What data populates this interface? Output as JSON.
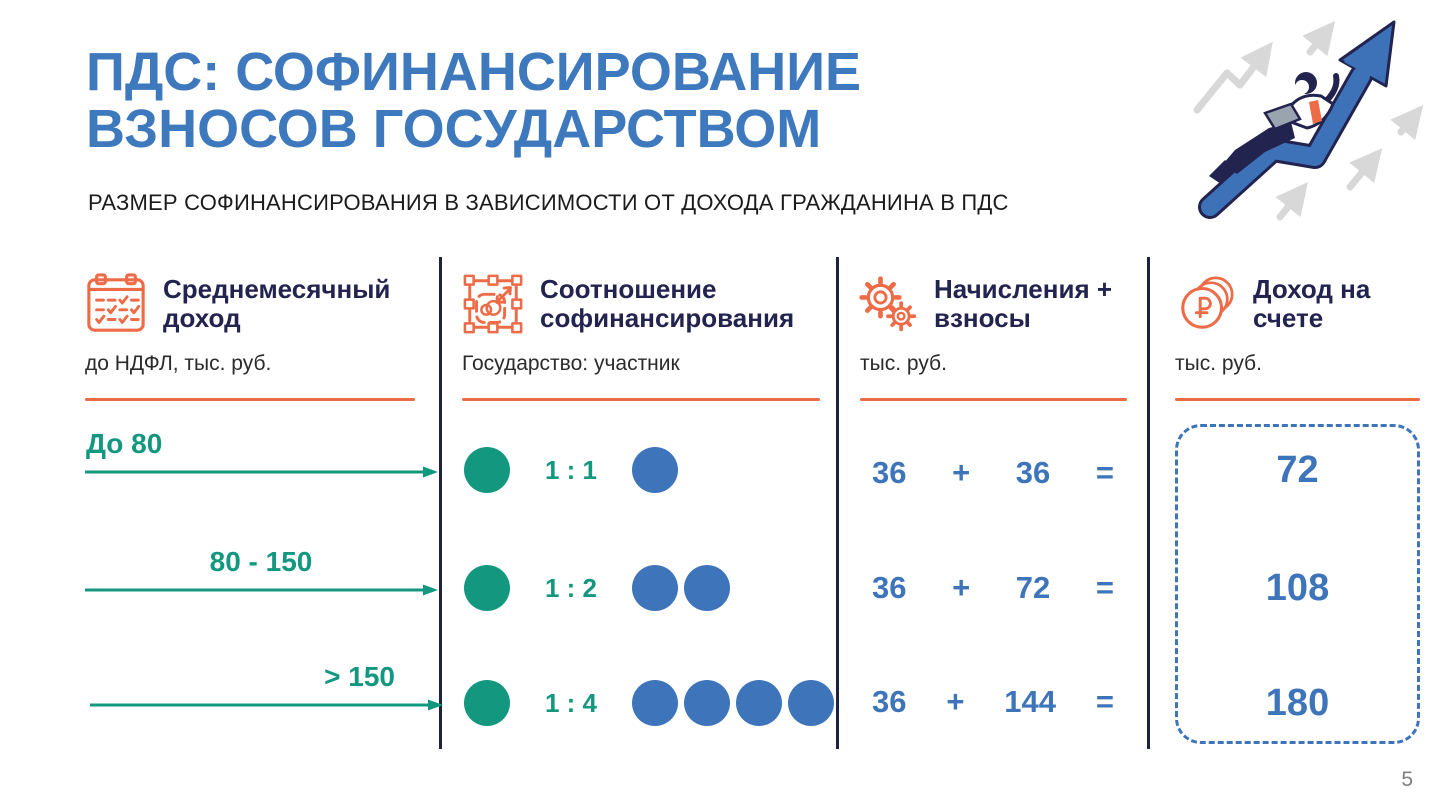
{
  "header": {
    "title_line1": "ПДС: СОФИНАНСИРОВАНИЕ",
    "title_line2": "ВЗНОСОВ ГОСУДАРСТВОМ",
    "subtitle": "РАЗМЕР СОФИНАНСИРОВАНИЯ В ЗАВИСИМОСТИ ОТ ДОХОДА ГРАЖДАНИНА В ПДС"
  },
  "columns": [
    {
      "icon": "calendar-icon",
      "title": "Среднемесячный доход",
      "unit": "до НДФЛ, тыс. руб."
    },
    {
      "icon": "cofinancing-ratio-icon",
      "title": "Соотношение софинансирования",
      "unit": "Государство: участник"
    },
    {
      "icon": "gears-icon",
      "title": "Начисления + взносы",
      "unit": "тыс. руб."
    },
    {
      "icon": "ruble-coins-icon",
      "title": "Доход на счете",
      "unit": "тыс. руб."
    }
  ],
  "rows": [
    {
      "income": "До 80",
      "ratio": "1 : 1",
      "state_circles": 1,
      "participant_circles": 1,
      "contribution": "36",
      "plus": "+",
      "cofinancing": "36",
      "equals": "=",
      "total": "72"
    },
    {
      "income": "80 - 150",
      "ratio": "1 : 2",
      "state_circles": 1,
      "participant_circles": 2,
      "contribution": "36",
      "plus": "+",
      "cofinancing": "72",
      "equals": "=",
      "total": "108"
    },
    {
      "income": "> 150",
      "ratio": "1 : 4",
      "state_circles": 1,
      "participant_circles": 4,
      "contribution": "36",
      "plus": "+",
      "cofinancing": "144",
      "equals": "=",
      "total": "180"
    }
  ],
  "footer": {
    "page_number": "5"
  },
  "colors": {
    "title_blue": "#3E79BD",
    "header_navy": "#232350",
    "accent_orange": "#ED6B46",
    "teal": "#13987F",
    "blue": "#3E74BA",
    "divider_navy": "#1E2240",
    "page_number_gray": "#7F7F7F"
  }
}
